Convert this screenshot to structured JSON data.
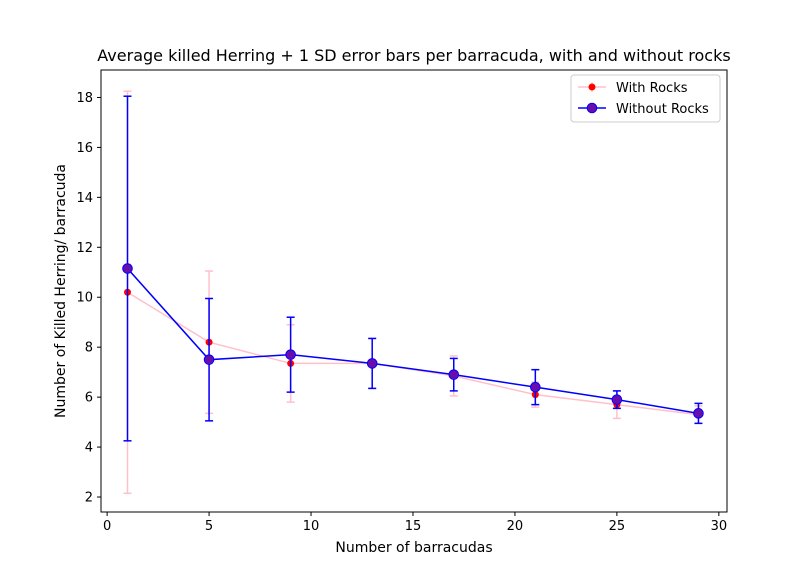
{
  "chart_data": {
    "type": "line",
    "title": "Average killed Herring + 1 SD error bars per barracuda, with and without rocks",
    "xlabel": "Number of barracudas",
    "ylabel": "Number of Killed Herring/ barracuda",
    "xlim": [
      -0.3,
      30.4
    ],
    "ylim": [
      1.4,
      19.1
    ],
    "x_ticks": [
      0,
      5,
      10,
      15,
      20,
      25,
      30
    ],
    "y_ticks": [
      2,
      4,
      6,
      8,
      10,
      12,
      14,
      16,
      18
    ],
    "grid": false,
    "legend_position": "top-right",
    "series": [
      {
        "name": "With Rocks",
        "color": "#ffc0cb",
        "marker_color": "#ff0000",
        "marker": "small-dot",
        "x": [
          1,
          5,
          9,
          13,
          17,
          21,
          25,
          29
        ],
        "y": [
          10.2,
          8.2,
          7.35,
          7.35,
          6.85,
          6.1,
          5.7,
          5.3
        ],
        "error": [
          8.05,
          2.85,
          1.55,
          1.0,
          0.8,
          0.5,
          0.55,
          0.35
        ]
      },
      {
        "name": "Without Rocks",
        "color": "#0000ff",
        "marker_color": "#6a0dad",
        "marker": "large-dot",
        "x": [
          1,
          5,
          9,
          13,
          17,
          21,
          25,
          29
        ],
        "y": [
          11.15,
          7.5,
          7.7,
          7.35,
          6.9,
          6.4,
          5.9,
          5.35
        ],
        "error": [
          6.9,
          2.45,
          1.5,
          1.0,
          0.65,
          0.7,
          0.35,
          0.4
        ]
      }
    ]
  }
}
